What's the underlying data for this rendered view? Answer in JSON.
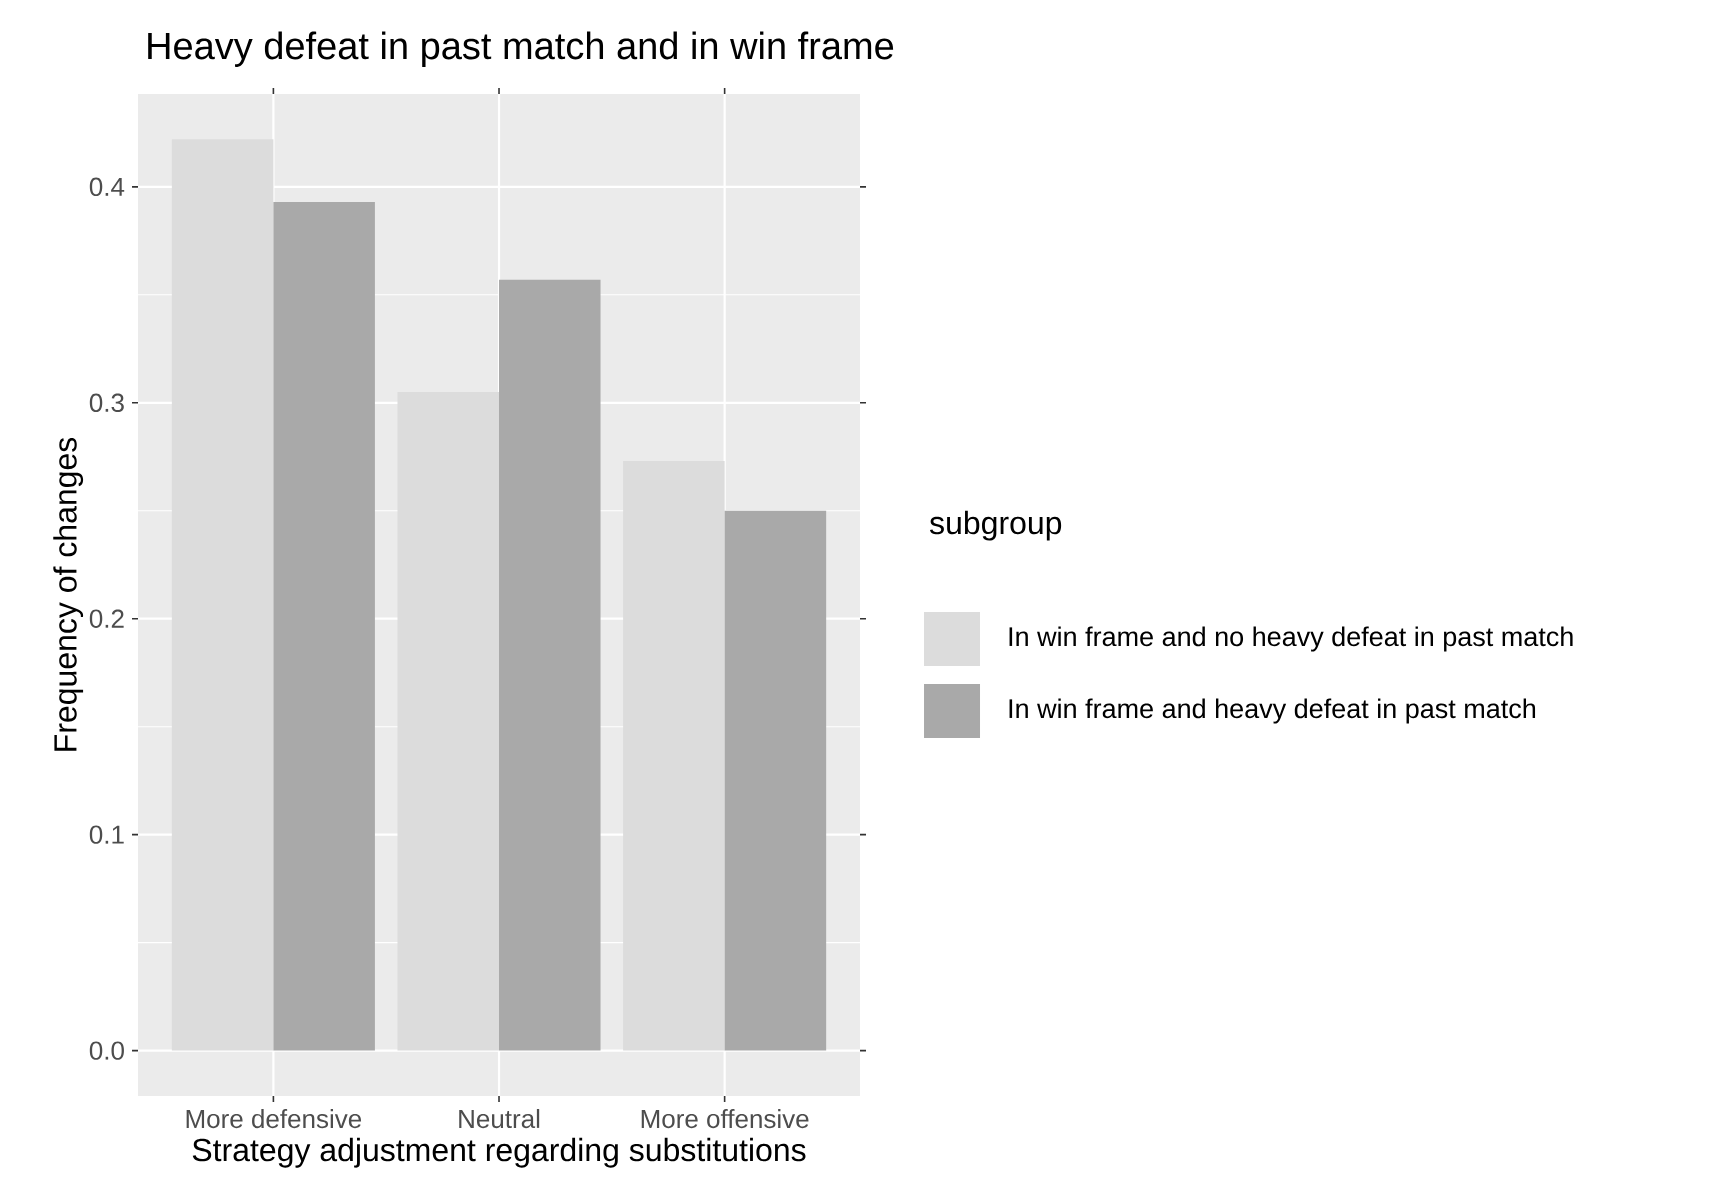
{
  "chart_data": {
    "type": "bar",
    "title": "Heavy defeat in past match and in win frame",
    "xlabel": "Strategy adjustment regarding substitutions",
    "ylabel": "Frequency of changes",
    "legend_title": "subgroup",
    "categories": [
      "More defensive",
      "Neutral",
      "More offensive"
    ],
    "series": [
      {
        "name": "In win frame and no heavy defeat in past match",
        "color": "#dcdcdc",
        "values": [
          0.422,
          0.305,
          0.273
        ]
      },
      {
        "name": "In win frame and heavy defeat in past match",
        "color": "#a9a9a9",
        "values": [
          0.393,
          0.357,
          0.25
        ]
      }
    ],
    "ylim": [
      -0.021,
      0.443
    ],
    "yticks": [
      {
        "value": 0,
        "label": "0.0"
      },
      0.1,
      0.2,
      0.3,
      0.4
    ],
    "grid": true,
    "legend": "right"
  }
}
